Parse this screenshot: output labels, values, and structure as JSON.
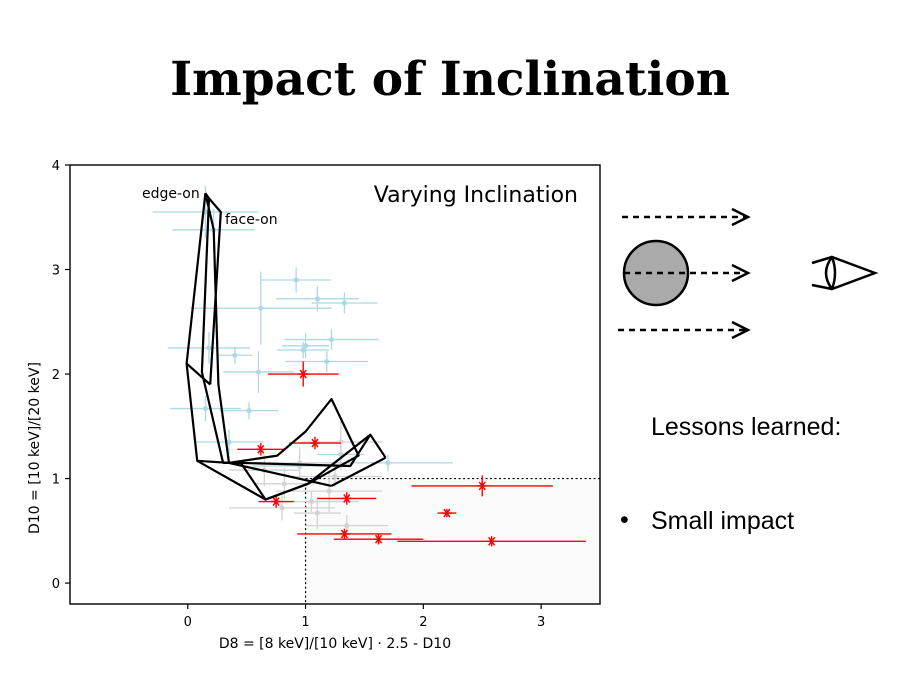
{
  "slide": {
    "title": "Impact of Inclination",
    "lessons_heading": "Lessons learned:",
    "bullets": [
      "Small impact"
    ]
  },
  "chart_data": {
    "type": "scatter",
    "title": "Varying Inclination",
    "xlabel": "D8 = [8 keV]/[10 keV] · 2.5 - D10",
    "ylabel": "D10 = [10 keV]/[20 keV]",
    "xlim": [
      -1.0,
      3.5
    ],
    "ylim": [
      -0.2,
      4.0
    ],
    "xticks": [
      0,
      1,
      2,
      3
    ],
    "yticks": [
      0,
      1,
      2,
      3,
      4
    ],
    "grid": false,
    "reference_lines": {
      "x": 1,
      "y": 1
    },
    "annotations": [
      "edge-on",
      "face-on"
    ],
    "series": [
      {
        "color": "#add8e6",
        "points": [
          {
            "x": 0.15,
            "y": 3.55,
            "xerr": 0.45,
            "yerr": 0.25
          },
          {
            "x": 0.22,
            "y": 3.38,
            "xerr": 0.35,
            "yerr": 0.2
          },
          {
            "x": 0.92,
            "y": 2.9,
            "xerr": 0.3,
            "yerr": 0.12
          },
          {
            "x": 1.1,
            "y": 2.72,
            "xerr": 0.35,
            "yerr": 0.12
          },
          {
            "x": 1.33,
            "y": 2.68,
            "xerr": 0.28,
            "yerr": 0.1
          },
          {
            "x": 0.62,
            "y": 2.63,
            "xerr": 0.6,
            "yerr": 0.35
          },
          {
            "x": 1.22,
            "y": 2.33,
            "xerr": 0.4,
            "yerr": 0.1
          },
          {
            "x": 1.0,
            "y": 2.27,
            "xerr": 0.2,
            "yerr": 0.12
          },
          {
            "x": 0.98,
            "y": 2.23,
            "xerr": 0.22,
            "yerr": 0.08
          },
          {
            "x": 0.18,
            "y": 2.25,
            "xerr": 0.35,
            "yerr": 0.15
          },
          {
            "x": 0.4,
            "y": 2.18,
            "xerr": 0.15,
            "yerr": 0.08
          },
          {
            "x": 1.18,
            "y": 2.12,
            "xerr": 0.35,
            "yerr": 0.1
          },
          {
            "x": 0.6,
            "y": 2.02,
            "xerr": 0.3,
            "yerr": 0.2
          },
          {
            "x": 0.15,
            "y": 1.67,
            "xerr": 0.3,
            "yerr": 0.12
          },
          {
            "x": 0.52,
            "y": 1.65,
            "xerr": 0.25,
            "yerr": 0.08
          },
          {
            "x": 0.35,
            "y": 1.35,
            "xerr": 0.3,
            "yerr": 0.12
          },
          {
            "x": 1.3,
            "y": 1.23,
            "xerr": 0.2,
            "yerr": 0.15
          },
          {
            "x": 1.7,
            "y": 1.15,
            "xerr": 0.55,
            "yerr": 0.08
          },
          {
            "x": 0.95,
            "y": 1.12,
            "xerr": 0.4,
            "yerr": 0.12
          }
        ]
      },
      {
        "color": "#d3d3d3",
        "points": [
          {
            "x": 1.3,
            "y": 1.35,
            "xerr": 0.35,
            "yerr": 0.2
          },
          {
            "x": 0.95,
            "y": 1.15,
            "xerr": 0.45,
            "yerr": 0.15
          },
          {
            "x": 0.65,
            "y": 1.08,
            "xerr": 0.3,
            "yerr": 0.15
          },
          {
            "x": 1.25,
            "y": 1.02,
            "xerr": 0.4,
            "yerr": 0.1
          },
          {
            "x": 0.82,
            "y": 0.95,
            "xerr": 0.25,
            "yerr": 0.15
          },
          {
            "x": 1.2,
            "y": 0.88,
            "xerr": 0.45,
            "yerr": 0.2
          },
          {
            "x": 1.05,
            "y": 0.78,
            "xerr": 0.4,
            "yerr": 0.1
          },
          {
            "x": 0.8,
            "y": 0.72,
            "xerr": 0.45,
            "yerr": 0.12
          },
          {
            "x": 1.1,
            "y": 0.67,
            "xerr": 0.2,
            "yerr": 0.15
          },
          {
            "x": 1.35,
            "y": 0.55,
            "xerr": 0.35,
            "yerr": 0.1
          }
        ]
      },
      {
        "color": "#ff0000",
        "points": [
          {
            "x": 0.98,
            "y": 2.0,
            "xerr": 0.3,
            "yerr": 0.12
          },
          {
            "x": 0.62,
            "y": 1.28,
            "xerr": 0.2,
            "yerr": 0.06
          },
          {
            "x": 1.08,
            "y": 1.34,
            "xerr": 0.22,
            "yerr": 0.06
          },
          {
            "x": 0.75,
            "y": 0.78,
            "xerr": 0.15,
            "yerr": 0.06
          },
          {
            "x": 1.35,
            "y": 0.81,
            "xerr": 0.25,
            "yerr": 0.06
          },
          {
            "x": 1.33,
            "y": 0.47,
            "xerr": 0.4,
            "yerr": 0.05
          },
          {
            "x": 1.62,
            "y": 0.42,
            "xerr": 0.38,
            "yerr": 0.05
          },
          {
            "x": 2.5,
            "y": 0.93,
            "xerr": 0.6,
            "yerr": 0.1
          },
          {
            "x": 2.2,
            "y": 0.67,
            "xerr": 0.08,
            "yerr": 0.04
          },
          {
            "x": 2.58,
            "y": 0.4,
            "xerr": 0.8,
            "yerr": 0.05
          }
        ]
      }
    ],
    "model_grid": [
      [
        [
          0.15,
          3.73
        ],
        [
          -0.01,
          2.1
        ],
        [
          0.08,
          1.17
        ],
        [
          0.66,
          0.8
        ],
        [
          1.02,
          0.95
        ],
        [
          1.45,
          1.22
        ],
        [
          1.22,
          1.76
        ],
        [
          1.0,
          1.45
        ],
        [
          0.76,
          1.22
        ],
        [
          0.35,
          1.15
        ],
        [
          0.26,
          1.9
        ],
        [
          0.22,
          3.38
        ],
        [
          0.15,
          3.73
        ]
      ],
      [
        [
          0.15,
          3.73
        ],
        [
          0.18,
          3.68
        ],
        [
          0.12,
          2.02
        ],
        [
          0.3,
          1.15
        ]
      ],
      [
        [
          0.18,
          3.68
        ],
        [
          0.28,
          3.55
        ],
        [
          0.19,
          1.9
        ]
      ],
      [
        [
          -0.01,
          2.1
        ],
        [
          0.19,
          1.9
        ]
      ],
      [
        [
          0.08,
          1.17
        ],
        [
          0.35,
          1.15
        ],
        [
          1.22,
          0.93
        ]
      ],
      [
        [
          0.66,
          0.8
        ],
        [
          1.02,
          0.95
        ],
        [
          1.55,
          1.42
        ],
        [
          1.68,
          1.2
        ]
      ],
      [
        [
          1.22,
          0.93
        ],
        [
          1.68,
          1.2
        ]
      ],
      [
        [
          0.3,
          1.15
        ],
        [
          0.45,
          1.15
        ],
        [
          1.38,
          1.12
        ],
        [
          1.55,
          1.42
        ]
      ],
      [
        [
          0.45,
          1.15
        ],
        [
          0.66,
          0.8
        ]
      ]
    ]
  },
  "illustration": {
    "sphere_fill": "#aaaaaa",
    "arrow_count": 3,
    "observer": "eye-icon"
  }
}
